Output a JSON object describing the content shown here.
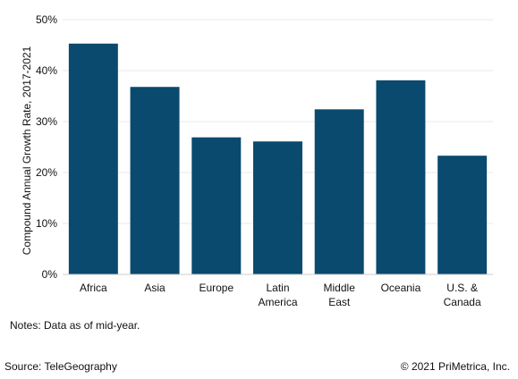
{
  "chart_data": {
    "type": "bar",
    "categories": [
      [
        "Africa"
      ],
      [
        "Asia"
      ],
      [
        "Europe"
      ],
      [
        "Latin",
        "America"
      ],
      [
        "Middle",
        "East"
      ],
      [
        "Oceania"
      ],
      [
        "U.S. &",
        "Canada"
      ]
    ],
    "values": [
      45.3,
      36.8,
      26.9,
      26.1,
      32.4,
      38.1,
      23.3
    ],
    "ylabel": "Compound Annual Growth Rate, 2017-2021",
    "xlabel": "",
    "ylim": [
      0,
      50
    ],
    "yticks": [
      0,
      10,
      20,
      30,
      40,
      50
    ],
    "ytick_suffix": "%",
    "grid": true,
    "bar_color": "#0a4a6e",
    "grid_color": "#e8e8e8"
  },
  "notes": "Notes: Data as of mid-year.",
  "source": "Source: TeleGeography",
  "copyright": "© 2021 PriMetrica, Inc."
}
